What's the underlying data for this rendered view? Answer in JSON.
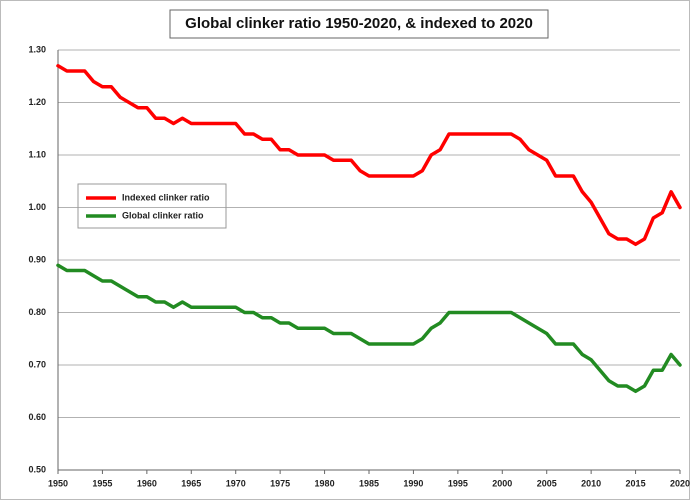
{
  "chart_data": {
    "type": "line",
    "title": "Global clinker ratio 1950-2020, & indexed to 2020",
    "x": [
      1950,
      1951,
      1952,
      1953,
      1954,
      1955,
      1956,
      1957,
      1958,
      1959,
      1960,
      1961,
      1962,
      1963,
      1964,
      1965,
      1966,
      1967,
      1968,
      1969,
      1970,
      1971,
      1972,
      1973,
      1974,
      1975,
      1976,
      1977,
      1978,
      1979,
      1980,
      1981,
      1982,
      1983,
      1984,
      1985,
      1986,
      1987,
      1988,
      1989,
      1990,
      1991,
      1992,
      1993,
      1994,
      1995,
      1996,
      1997,
      1998,
      1999,
      2000,
      2001,
      2002,
      2003,
      2004,
      2005,
      2006,
      2007,
      2008,
      2009,
      2010,
      2011,
      2012,
      2013,
      2014,
      2015,
      2016,
      2017,
      2018,
      2019,
      2020
    ],
    "series": [
      {
        "name": "Indexed clinker ratio",
        "color": "#ff0000",
        "values": [
          1.27,
          1.26,
          1.26,
          1.26,
          1.24,
          1.23,
          1.23,
          1.21,
          1.2,
          1.19,
          1.19,
          1.17,
          1.17,
          1.16,
          1.17,
          1.16,
          1.16,
          1.16,
          1.16,
          1.16,
          1.16,
          1.14,
          1.14,
          1.13,
          1.13,
          1.11,
          1.11,
          1.1,
          1.1,
          1.1,
          1.1,
          1.09,
          1.09,
          1.09,
          1.07,
          1.06,
          1.06,
          1.06,
          1.06,
          1.06,
          1.06,
          1.07,
          1.1,
          1.11,
          1.14,
          1.14,
          1.14,
          1.14,
          1.14,
          1.14,
          1.14,
          1.14,
          1.13,
          1.11,
          1.1,
          1.09,
          1.06,
          1.06,
          1.06,
          1.03,
          1.01,
          0.98,
          0.95,
          0.94,
          0.94,
          0.93,
          0.94,
          0.98,
          0.99,
          1.03,
          1.0
        ]
      },
      {
        "name": "Global clinker ratio",
        "color": "#228b22",
        "values": [
          0.89,
          0.88,
          0.88,
          0.88,
          0.87,
          0.86,
          0.86,
          0.85,
          0.84,
          0.83,
          0.83,
          0.82,
          0.82,
          0.81,
          0.82,
          0.81,
          0.81,
          0.81,
          0.81,
          0.81,
          0.81,
          0.8,
          0.8,
          0.79,
          0.79,
          0.78,
          0.78,
          0.77,
          0.77,
          0.77,
          0.77,
          0.76,
          0.76,
          0.76,
          0.75,
          0.74,
          0.74,
          0.74,
          0.74,
          0.74,
          0.74,
          0.75,
          0.77,
          0.78,
          0.8,
          0.8,
          0.8,
          0.8,
          0.8,
          0.8,
          0.8,
          0.8,
          0.79,
          0.78,
          0.77,
          0.76,
          0.74,
          0.74,
          0.74,
          0.72,
          0.71,
          0.69,
          0.67,
          0.66,
          0.66,
          0.65,
          0.66,
          0.69,
          0.69,
          0.72,
          0.7
        ]
      }
    ],
    "xlim": [
      1950,
      2020
    ],
    "xticks": [
      1950,
      1955,
      1960,
      1965,
      1970,
      1975,
      1980,
      1985,
      1990,
      1995,
      2000,
      2005,
      2010,
      2015,
      2020
    ],
    "ylim": [
      0.5,
      1.3
    ],
    "yticks": [
      {
        "value": 0.5,
        "label": "0.50"
      },
      {
        "value": 0.6,
        "label": "0.60"
      },
      {
        "value": 0.7,
        "label": "0.70"
      },
      {
        "value": 0.8,
        "label": "0.80"
      },
      {
        "value": 0.9,
        "label": "0.90"
      },
      {
        "value": 1.0,
        "label": "1.00"
      },
      {
        "value": 1.1,
        "label": "1.10"
      },
      {
        "value": 1.2,
        "label": "1.20"
      },
      {
        "value": 1.3,
        "label": "1.30"
      }
    ],
    "grid": true
  }
}
